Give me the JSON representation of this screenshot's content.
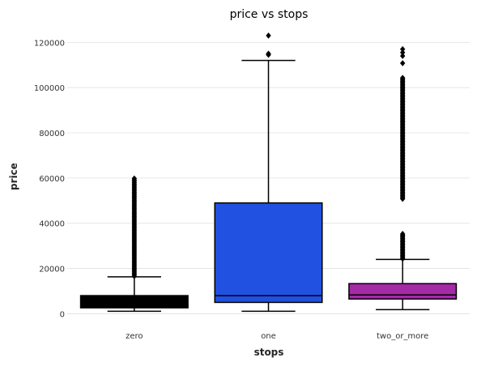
{
  "chart_data": {
    "type": "box",
    "title": "price vs stops",
    "xlabel": "stops",
    "ylabel": "price",
    "ylim": [
      -2000,
      128000
    ],
    "yticks": [
      0,
      20000,
      40000,
      60000,
      80000,
      100000,
      120000
    ],
    "ytick_labels": [
      "0",
      "20000",
      "40000",
      "60000",
      "80000",
      "100000",
      "120000"
    ],
    "grid": true,
    "categories": [
      "zero",
      "one",
      "two_or_more"
    ],
    "boxes": [
      {
        "category": "zero",
        "color": "#000000",
        "whislo": 1100,
        "q1": 2600,
        "med": 4500,
        "q3": 8000,
        "whishi": 16300,
        "fliers": [
          16600,
          17200,
          17800,
          18400,
          19000,
          19600,
          20200,
          20800,
          21400,
          22000,
          22600,
          23200,
          23800,
          24400,
          25000,
          25600,
          26200,
          26800,
          27400,
          28000,
          28600,
          29200,
          29800,
          30400,
          31000,
          31600,
          32200,
          32800,
          33400,
          34000,
          34600,
          35200,
          35800,
          36400,
          37000,
          37600,
          38200,
          38800,
          39400,
          40000,
          40600,
          41200,
          41800,
          42400,
          43000,
          43600,
          44200,
          44800,
          45400,
          46000,
          46600,
          47200,
          47800,
          48400,
          49000,
          49600,
          50200,
          50800,
          51400,
          52000,
          52600,
          53200,
          53800,
          54400,
          55000,
          55600,
          56200,
          56800,
          57400,
          58000,
          58600,
          59200,
          59800
        ]
      },
      {
        "category": "one",
        "color": "#2151e0",
        "whislo": 1100,
        "q1": 5000,
        "med": 8000,
        "q3": 49000,
        "whishi": 112000,
        "fliers": [
          114500,
          115000,
          123000
        ]
      },
      {
        "category": "two_or_more",
        "color": "#a42aa6",
        "whislo": 1800,
        "q1": 6500,
        "med": 8300,
        "q3": 13300,
        "whishi": 24000,
        "fliers": [
          24300,
          24800,
          25300,
          25800,
          26300,
          26800,
          27300,
          27800,
          28300,
          28800,
          29300,
          29800,
          30300,
          30800,
          31300,
          31800,
          32300,
          32800,
          33300,
          33800,
          34300,
          34800,
          35300,
          50800,
          51300,
          51800,
          52300,
          52800,
          53300,
          53800,
          54300,
          54800,
          55300,
          55800,
          56300,
          56800,
          57300,
          57800,
          58300,
          58800,
          59300,
          59800,
          60300,
          60800,
          61300,
          61800,
          62300,
          62800,
          63300,
          63800,
          64300,
          64800,
          65300,
          65800,
          66300,
          66800,
          67300,
          67800,
          68300,
          68800,
          69300,
          69800,
          70300,
          70800,
          71300,
          71800,
          72300,
          72800,
          73300,
          73800,
          74300,
          74800,
          75300,
          75800,
          76300,
          76800,
          77300,
          77800,
          78300,
          78800,
          79300,
          79800,
          80300,
          80800,
          81300,
          81800,
          82300,
          82800,
          83300,
          83800,
          84300,
          84800,
          85300,
          85800,
          86300,
          86800,
          87300,
          87800,
          88300,
          88800,
          89300,
          89800,
          90300,
          90800,
          91300,
          91800,
          92300,
          92800,
          93300,
          93800,
          94300,
          94800,
          95300,
          95800,
          96300,
          96800,
          97300,
          97800,
          98300,
          98800,
          99300,
          99800,
          100300,
          100800,
          101300,
          101800,
          102300,
          102800,
          103300,
          103800,
          104300,
          110800,
          114000,
          115500,
          117000
        ]
      }
    ]
  }
}
